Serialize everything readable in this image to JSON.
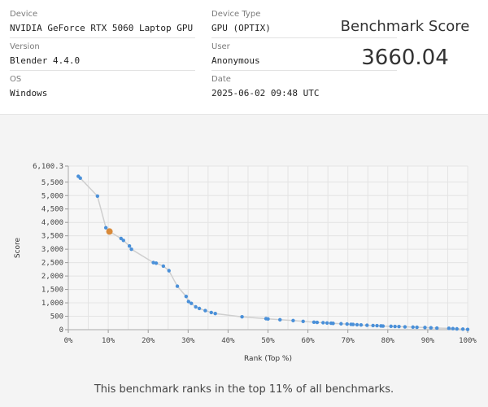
{
  "info": {
    "device_label": "Device",
    "device_value": "NVIDIA GeForce RTX 5060 Laptop GPU",
    "version_label": "Version",
    "version_value": "Blender 4.4.0",
    "os_label": "OS",
    "os_value": "Windows",
    "device_type_label": "Device Type",
    "device_type_value": "GPU (OPTIX)",
    "user_label": "User",
    "user_value": "Anonymous",
    "date_label": "Date",
    "date_value": "2025-06-02 09:48 UTC"
  },
  "score": {
    "title": "Benchmark Score",
    "value": "3660.04"
  },
  "caption": "This benchmark ranks in the top 11% of all benchmarks.",
  "colors": {
    "point": "#4a90d9",
    "highlight": "#d98a3a",
    "line": "#cfcfcf",
    "grid": "#e4e4e4"
  },
  "chart_data": {
    "type": "scatter",
    "title": "",
    "xlabel": "Rank (Top %)",
    "ylabel": "Score",
    "xlim": [
      0,
      100
    ],
    "ylim": [
      0,
      6100.3
    ],
    "x_ticks": [
      "0%",
      "10%",
      "20%",
      "30%",
      "40%",
      "50%",
      "60%",
      "70%",
      "80%",
      "90%",
      "100%"
    ],
    "y_ticks": [
      "0",
      "500",
      "1,000",
      "1,500",
      "2,000",
      "2,500",
      "3,000",
      "3,500",
      "4,000",
      "4,500",
      "5,000",
      "5,500",
      "6,100.3"
    ],
    "y_tick_values": [
      0,
      500,
      1000,
      1500,
      2000,
      2500,
      3000,
      3500,
      4000,
      4500,
      5000,
      5500,
      6100.3
    ],
    "grid": true,
    "series": [
      {
        "values": [
          [
            2.5,
            5720
          ],
          [
            3,
            5650
          ],
          [
            7.3,
            4980
          ],
          [
            9.4,
            3800
          ],
          [
            13.2,
            3400
          ],
          [
            13.8,
            3330
          ],
          [
            15.3,
            3120
          ],
          [
            15.8,
            3000
          ],
          [
            21.3,
            2500
          ],
          [
            22,
            2480
          ],
          [
            23.8,
            2370
          ],
          [
            25.2,
            2200
          ],
          [
            27.3,
            1620
          ],
          [
            29.5,
            1240
          ],
          [
            30.1,
            1050
          ],
          [
            30.8,
            980
          ],
          [
            31.9,
            850
          ],
          [
            32.8,
            790
          ],
          [
            34.3,
            710
          ],
          [
            35.8,
            640
          ],
          [
            36.8,
            600
          ],
          [
            43.5,
            480
          ],
          [
            49.5,
            410
          ],
          [
            50,
            400
          ],
          [
            53,
            370
          ],
          [
            56.3,
            340
          ],
          [
            58.8,
            310
          ],
          [
            61.5,
            280
          ],
          [
            62.3,
            270
          ],
          [
            63.8,
            260
          ],
          [
            64.8,
            250
          ],
          [
            65.8,
            240
          ],
          [
            66.3,
            235
          ],
          [
            68.3,
            220
          ],
          [
            69.8,
            210
          ],
          [
            70.8,
            200
          ],
          [
            71.3,
            195
          ],
          [
            72.3,
            185
          ],
          [
            73.3,
            175
          ],
          [
            74.8,
            165
          ],
          [
            76.3,
            155
          ],
          [
            77.3,
            150
          ],
          [
            78.3,
            140
          ],
          [
            78.8,
            135
          ],
          [
            80.8,
            125
          ],
          [
            81.8,
            120
          ],
          [
            82.8,
            115
          ],
          [
            84.3,
            105
          ],
          [
            86.3,
            95
          ],
          [
            87.3,
            90
          ],
          [
            89.3,
            80
          ],
          [
            90.8,
            70
          ],
          [
            92.3,
            60
          ],
          [
            95.3,
            50
          ],
          [
            96.3,
            40
          ],
          [
            97.3,
            30
          ],
          [
            98.8,
            20
          ],
          [
            100,
            10
          ]
        ]
      }
    ],
    "highlight": [
      10.3,
      3660.04
    ]
  }
}
